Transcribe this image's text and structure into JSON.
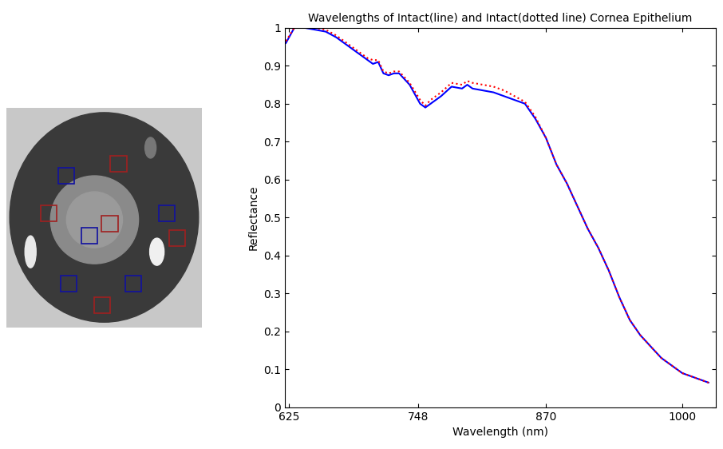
{
  "chart_data": {
    "type": "line",
    "title": "Wavelengths of Intact(line) and Intact(dotted line) Cornea Epithelium",
    "x_label": "Wavelength (nm)",
    "y_label": "Reflectance",
    "x": [
      622,
      630,
      640,
      650,
      660,
      670,
      680,
      690,
      700,
      705,
      710,
      715,
      720,
      725,
      730,
      740,
      750,
      755,
      760,
      770,
      780,
      790,
      795,
      800,
      810,
      820,
      830,
      840,
      850,
      860,
      870,
      880,
      890,
      900,
      910,
      920,
      930,
      940,
      950,
      960,
      970,
      980,
      990,
      1000,
      1010,
      1025
    ],
    "series": [
      {
        "color": "#0000ff",
        "line_style": "solid",
        "values": [
          0.96,
          1.0,
          1.0,
          0.995,
          0.99,
          0.975,
          0.955,
          0.935,
          0.915,
          0.905,
          0.91,
          0.88,
          0.875,
          0.88,
          0.88,
          0.85,
          0.8,
          0.79,
          0.8,
          0.82,
          0.845,
          0.84,
          0.85,
          0.84,
          0.835,
          0.83,
          0.82,
          0.81,
          0.8,
          0.76,
          0.71,
          0.64,
          0.59,
          0.53,
          0.47,
          0.42,
          0.36,
          0.29,
          0.23,
          0.19,
          0.16,
          0.13,
          0.11,
          0.09,
          0.08,
          0.065
        ]
      },
      {
        "color": "#ff0000",
        "line_style": "dotted",
        "values": [
          0.965,
          1.0,
          1.0,
          1.0,
          0.995,
          0.98,
          0.96,
          0.94,
          0.92,
          0.915,
          0.915,
          0.885,
          0.88,
          0.885,
          0.885,
          0.855,
          0.81,
          0.795,
          0.81,
          0.83,
          0.855,
          0.85,
          0.86,
          0.855,
          0.85,
          0.845,
          0.835,
          0.82,
          0.805,
          0.765,
          0.71,
          0.64,
          0.59,
          0.53,
          0.47,
          0.42,
          0.36,
          0.29,
          0.23,
          0.19,
          0.16,
          0.13,
          0.11,
          0.09,
          0.08,
          0.065
        ]
      }
    ],
    "xlim": [
      621,
      1032
    ],
    "xticks": [
      625,
      748,
      870,
      1000
    ],
    "ylim": [
      0,
      1
    ],
    "yticks": [
      0,
      0.1,
      0.2,
      0.3,
      0.4,
      0.5,
      0.6,
      0.7,
      0.8,
      0.9,
      1
    ],
    "grid": false
  }
}
